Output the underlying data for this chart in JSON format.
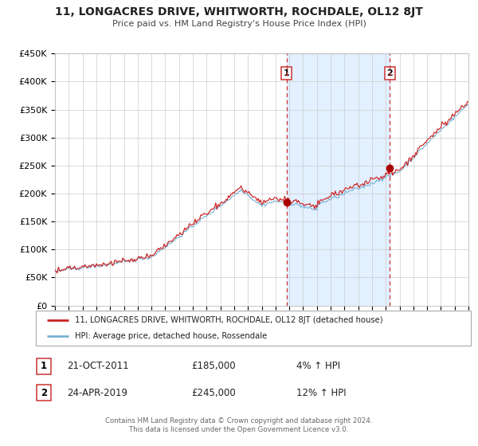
{
  "title": "11, LONGACRES DRIVE, WHITWORTH, ROCHDALE, OL12 8JT",
  "subtitle": "Price paid vs. HM Land Registry's House Price Index (HPI)",
  "legend_line1": "11, LONGACRES DRIVE, WHITWORTH, ROCHDALE, OL12 8JT (detached house)",
  "legend_line2": "HPI: Average price, detached house, Rossendale",
  "sale1_label": "1",
  "sale1_date": "21-OCT-2011",
  "sale1_price": "£185,000",
  "sale1_hpi": "4% ↑ HPI",
  "sale2_label": "2",
  "sale2_date": "24-APR-2019",
  "sale2_price": "£245,000",
  "sale2_hpi": "12% ↑ HPI",
  "footer1": "Contains HM Land Registry data © Crown copyright and database right 2024.",
  "footer2": "This data is licensed under the Open Government Licence v3.0.",
  "start_year": 1995,
  "end_year": 2025,
  "ylim": [
    0,
    450000
  ],
  "yticks": [
    0,
    50000,
    100000,
    150000,
    200000,
    250000,
    300000,
    350000,
    400000,
    450000
  ],
  "hpi_color": "#7ab0d4",
  "price_color": "#cc2222",
  "dot_color": "#aa0000",
  "shade_color": "#ddeeff",
  "vline_color": "#cc3333",
  "background_color": "#ffffff",
  "grid_color": "#cccccc",
  "sale1_year": 2011.8,
  "sale2_year": 2019.3,
  "sale1_price_val": 185000,
  "sale2_price_val": 245000
}
